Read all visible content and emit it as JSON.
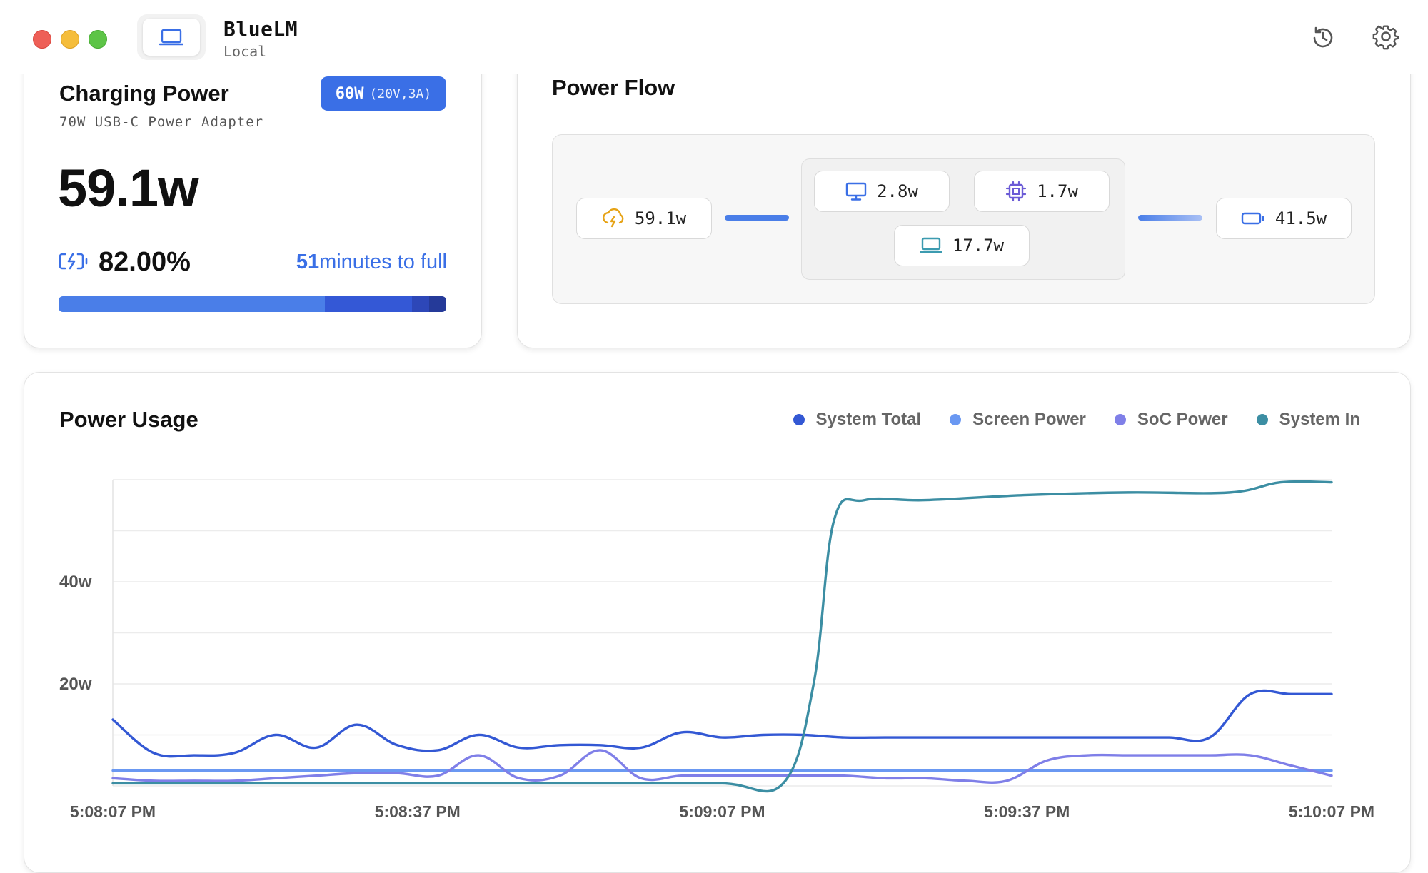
{
  "app": {
    "name": "BlueLM",
    "subtitle": "Local"
  },
  "toolbar": {
    "history_icon": "history-icon",
    "settings_icon": "gear-icon"
  },
  "charging": {
    "title": "Charging Power",
    "adapter": "70W USB-C Power Adapter",
    "badge_main": "60W",
    "badge_sub": "(20V,3A)",
    "power": "59.1w",
    "battery_percent": "82.00%",
    "minutes": "51",
    "minutes_label": "minutes to full",
    "progress": 0.82,
    "colors": {
      "accent": "#3a6fe6"
    }
  },
  "flow": {
    "title": "Power Flow",
    "input": "59.1w",
    "screen": "2.8w",
    "soc": "1.7w",
    "system": "17.7w",
    "battery": "41.5w"
  },
  "usage": {
    "title": "Power Usage",
    "legend": [
      {
        "label": "System Total",
        "color": "#3358d4"
      },
      {
        "label": "Screen Power",
        "color": "#6a98f2"
      },
      {
        "label": "SoC Power",
        "color": "#7f7fe8"
      },
      {
        "label": "System In",
        "color": "#3c8ea3"
      }
    ]
  },
  "chart_data": {
    "type": "line",
    "title": "Power Usage",
    "xlabel": "",
    "ylabel": "",
    "x_ticks": [
      "5:08:07 PM",
      "5:08:37 PM",
      "5:09:07 PM",
      "5:09:37 PM",
      "5:10:07 PM"
    ],
    "y_ticks": [
      "20w",
      "40w"
    ],
    "y_tick_values": [
      20,
      40
    ],
    "x_range": [
      0,
      120
    ],
    "ylim": [
      0,
      60
    ],
    "grid": true,
    "legend_position": "top-right",
    "series": [
      {
        "name": "System Total",
        "color": "#3358d4",
        "x": [
          0,
          4,
          8,
          12,
          16,
          20,
          24,
          28,
          32,
          36,
          40,
          44,
          48,
          52,
          56,
          60,
          64,
          68,
          72,
          76,
          80,
          84,
          88,
          92,
          96,
          100,
          104,
          108,
          112,
          116,
          120
        ],
        "y": [
          13,
          6.5,
          6,
          6.5,
          10,
          7.5,
          12,
          8,
          7,
          10,
          7.5,
          8,
          8,
          7.5,
          10.5,
          9.5,
          10,
          10,
          9.5,
          9.5,
          9.5,
          9.5,
          9.5,
          9.5,
          9.5,
          9.5,
          9.5,
          9.5,
          18,
          18,
          18
        ]
      },
      {
        "name": "Screen Power",
        "color": "#6a98f2",
        "x": [
          0,
          120
        ],
        "y": [
          3,
          3
        ]
      },
      {
        "name": "SoC Power",
        "color": "#7f7fe8",
        "x": [
          0,
          4,
          8,
          12,
          16,
          20,
          24,
          28,
          32,
          36,
          40,
          44,
          48,
          52,
          56,
          60,
          64,
          68,
          72,
          76,
          80,
          84,
          88,
          92,
          96,
          100,
          104,
          108,
          112,
          116,
          120
        ],
        "y": [
          1.5,
          1,
          1,
          1,
          1.5,
          2,
          2.5,
          2.5,
          2,
          6,
          1.5,
          2,
          7,
          1.5,
          2,
          2,
          2,
          2,
          2,
          1.5,
          1.5,
          1,
          1,
          5,
          6,
          6,
          6,
          6,
          6,
          4,
          2
        ]
      },
      {
        "name": "System In",
        "color": "#3c8ea3",
        "x": [
          0,
          10,
          20,
          30,
          40,
          50,
          60,
          66,
          69,
          71,
          74,
          80,
          90,
          100,
          110,
          115,
          120
        ],
        "y": [
          0.5,
          0.5,
          0.5,
          0.5,
          0.5,
          0.5,
          0.5,
          0.5,
          20,
          52,
          56,
          56,
          57,
          57.5,
          57.5,
          59.5,
          59.5
        ]
      }
    ]
  }
}
